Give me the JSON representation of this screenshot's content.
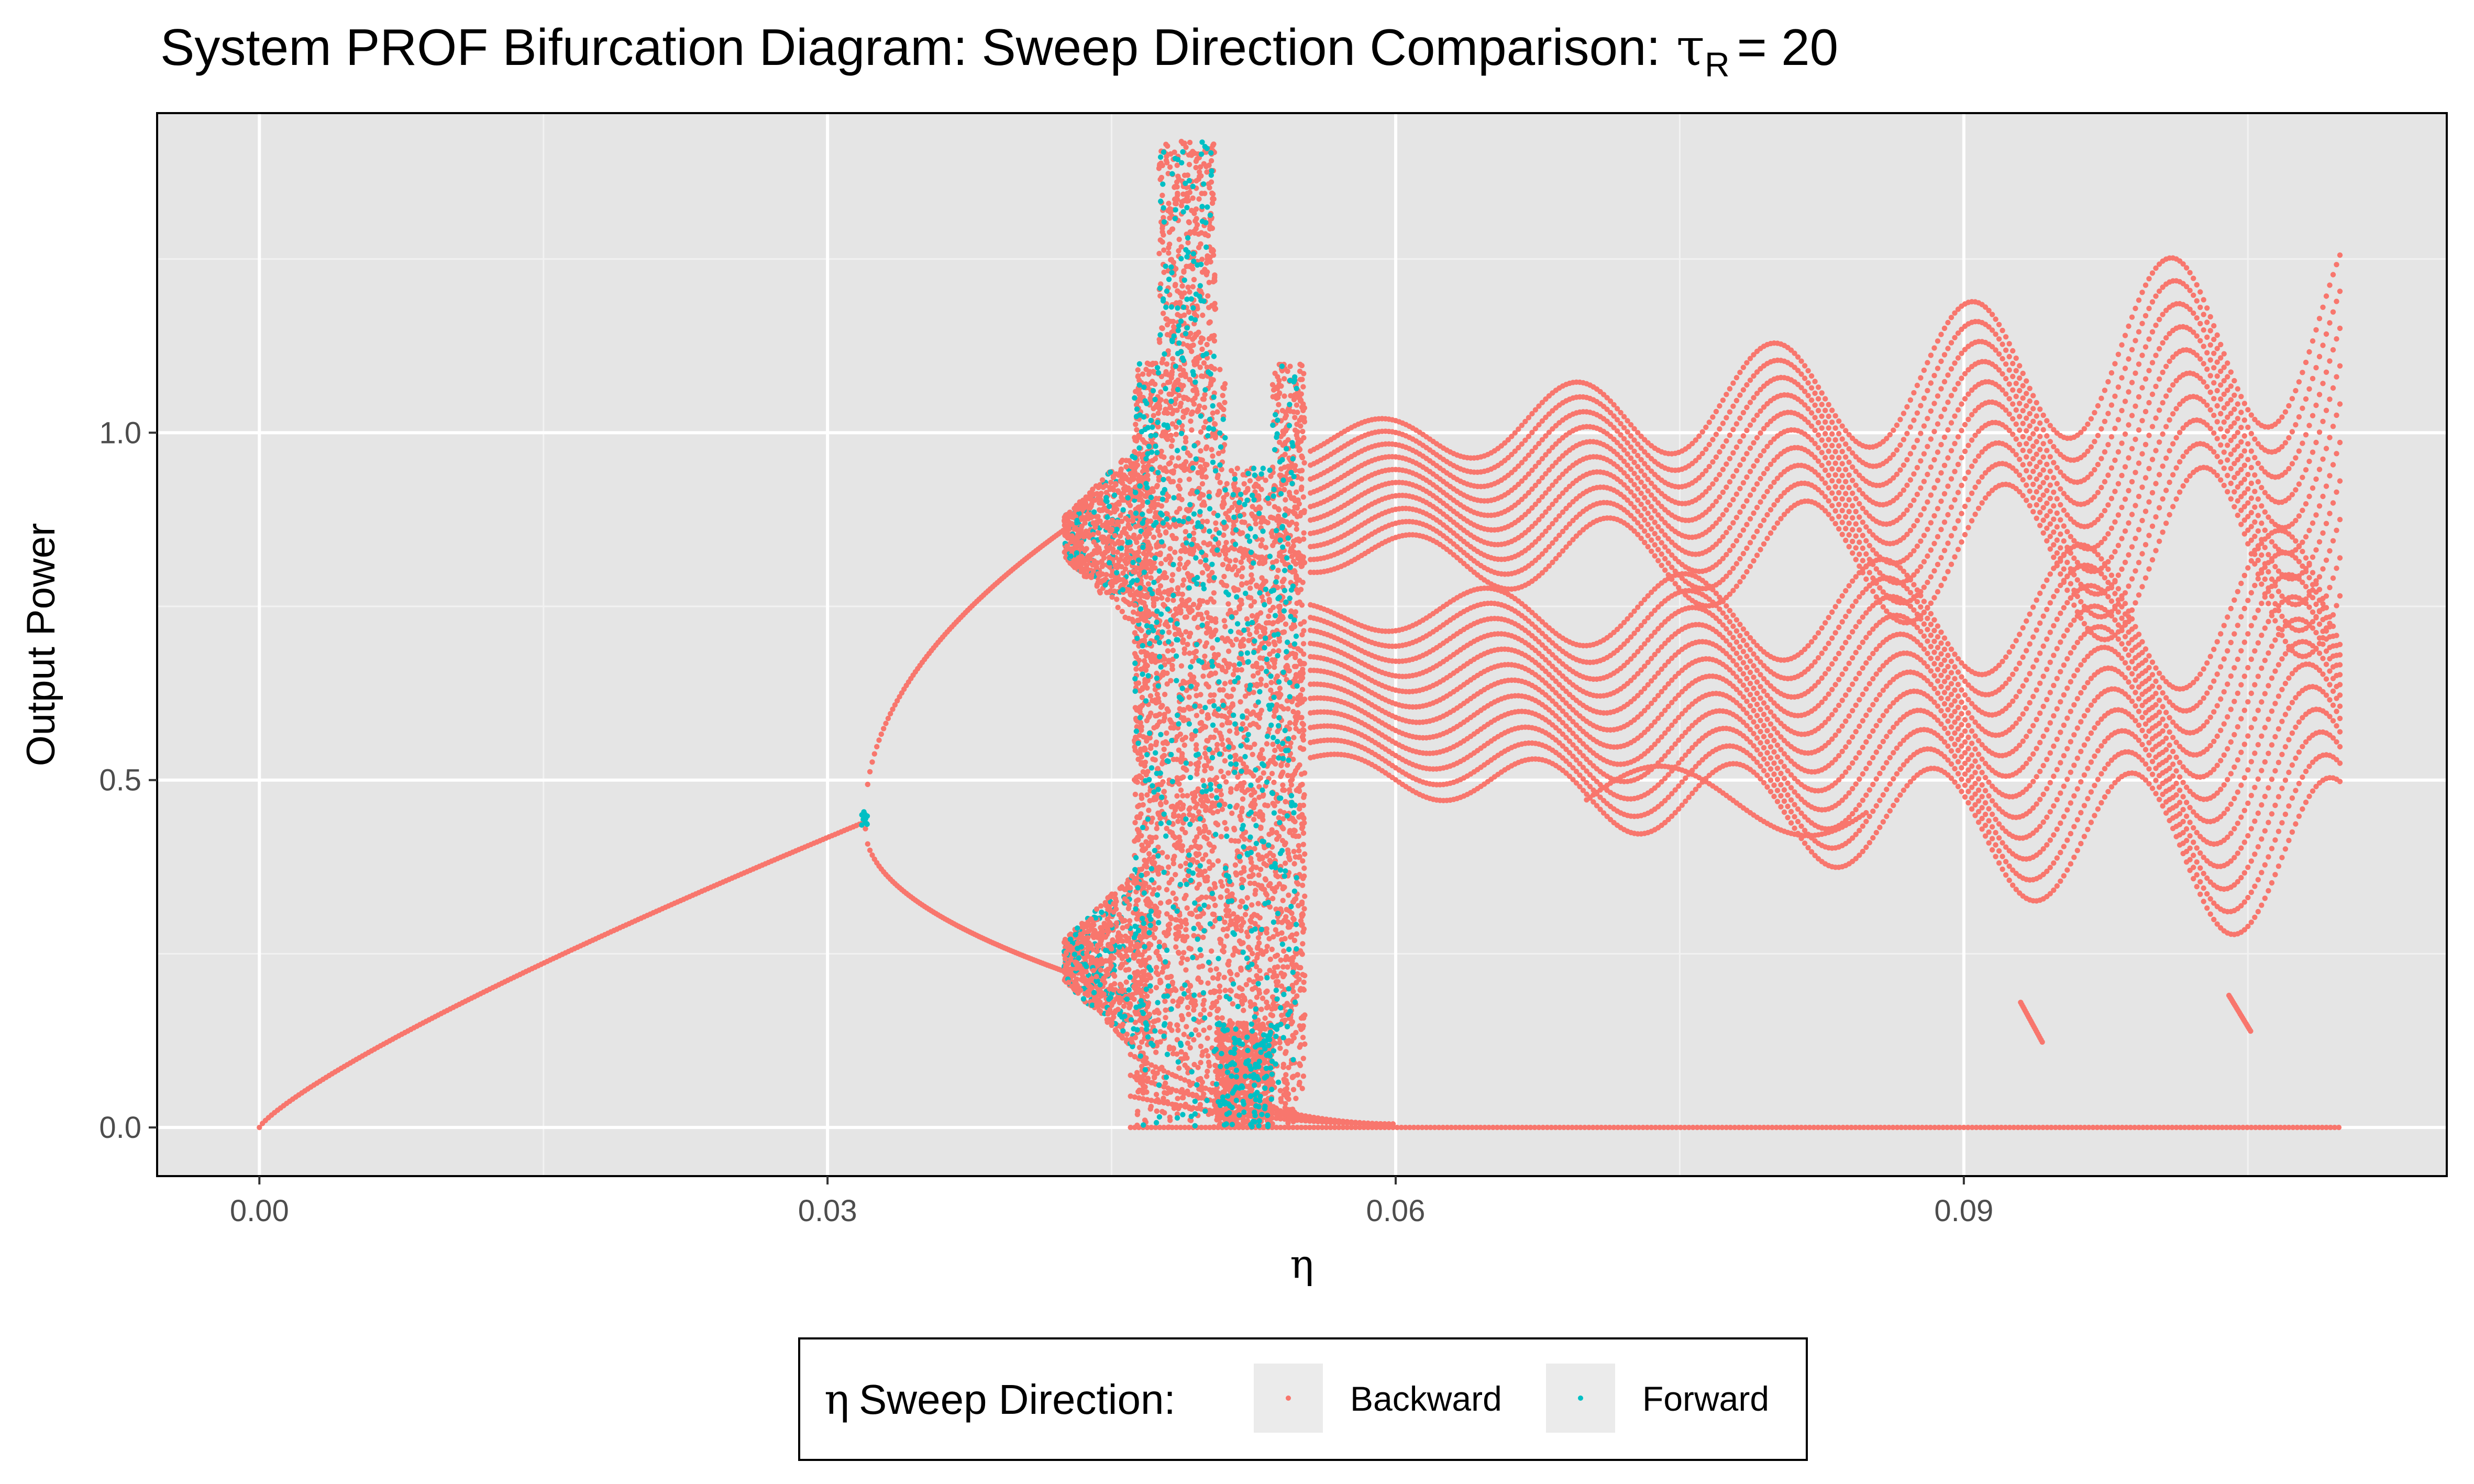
{
  "title": {
    "text": "System PROF Bifurcation Diagram: Sweep Direction Comparison:",
    "param_symbol": "τ",
    "param_subscript": "R",
    "param_eq": "= 20"
  },
  "colors": {
    "panel_bg": "#e5e5e5",
    "grid_major": "#ffffff",
    "grid_minor": "#f2f2f2",
    "backward": "#f8766d",
    "forward": "#00bfc4",
    "tick_text": "#4d4d4d",
    "legend_key_bg": "#ebebeb"
  },
  "chart_data": {
    "type": "scatter",
    "title": "System PROF Bifurcation Diagram: Sweep Direction Comparison: τR = 20",
    "xlabel": "η",
    "ylabel": "Output Power",
    "xlim": [
      -0.0054,
      0.1155
    ],
    "ylim": [
      -0.07,
      1.46
    ],
    "x_ticks": [
      0.0,
      0.03,
      0.06,
      0.09
    ],
    "x_tick_labels": [
      "0.00",
      "0.03",
      "0.06",
      "0.09"
    ],
    "y_ticks": [
      0.0,
      0.5,
      1.0
    ],
    "y_tick_labels": [
      "0.0",
      "0.5",
      "1.0"
    ],
    "grid": true,
    "legend_position": "bottom",
    "legend_title": "η Sweep Direction:",
    "series": [
      {
        "name": "Backward",
        "color": "#f8766d",
        "regions": [
          {
            "type": "fixed_point",
            "x_range": [
              0.0,
              0.032
            ],
            "y_formula": "0.44*sqrt(x/0.032) approx",
            "y_samples": [
              [
                0.0,
                0.0
              ],
              [
                0.008,
                0.14
              ],
              [
                0.016,
                0.26
              ],
              [
                0.024,
                0.36
              ],
              [
                0.032,
                0.44
              ]
            ]
          },
          {
            "type": "period_2_upper",
            "x_range": [
              0.032,
              0.043
            ],
            "y_samples": [
              [
                0.032,
                0.5
              ],
              [
                0.035,
                0.66
              ],
              [
                0.038,
                0.76
              ],
              [
                0.041,
                0.83
              ],
              [
                0.043,
                0.87
              ]
            ]
          },
          {
            "type": "period_2_lower",
            "x_range": [
              0.032,
              0.043
            ],
            "y_samples": [
              [
                0.032,
                0.4
              ],
              [
                0.035,
                0.3
              ],
              [
                0.038,
                0.25
              ],
              [
                0.041,
                0.225
              ],
              [
                0.043,
                0.22
              ]
            ]
          },
          {
            "type": "chaotic_band",
            "x_range": [
              0.043,
              0.0555
            ],
            "y_range": [
              0.0,
              1.42
            ]
          },
          {
            "type": "zero_branch",
            "x_range": [
              0.046,
              0.11
            ],
            "y": 0.0
          },
          {
            "type": "quasi_periodic_upper",
            "x_range": [
              0.0555,
              0.11
            ],
            "y_range": [
              0.78,
              1.38
            ]
          },
          {
            "type": "quasi_periodic_lower",
            "x_range": [
              0.0555,
              0.11
            ],
            "y_range": [
              0.25,
              0.8
            ]
          },
          {
            "type": "isolated_segments",
            "points": [
              [
                0.093,
                0.18
              ],
              [
                0.0935,
                0.15
              ],
              [
                0.094,
                0.12
              ],
              [
                0.104,
                0.19
              ],
              [
                0.1045,
                0.16
              ],
              [
                0.105,
                0.13
              ]
            ]
          }
        ]
      },
      {
        "name": "Forward",
        "color": "#00bfc4",
        "regions": [
          {
            "type": "cluster",
            "x_range": [
              0.0318,
              0.032
            ],
            "y_range": [
              0.44,
              0.45
            ]
          },
          {
            "type": "chaotic_band",
            "x_range": [
              0.044,
              0.0548
            ],
            "y_range": [
              0.0,
              1.42
            ]
          }
        ]
      }
    ]
  },
  "legend": {
    "title": "η Sweep Direction:",
    "items": [
      {
        "label": "Backward",
        "color": "#f8766d"
      },
      {
        "label": "Forward",
        "color": "#00bfc4"
      }
    ]
  }
}
